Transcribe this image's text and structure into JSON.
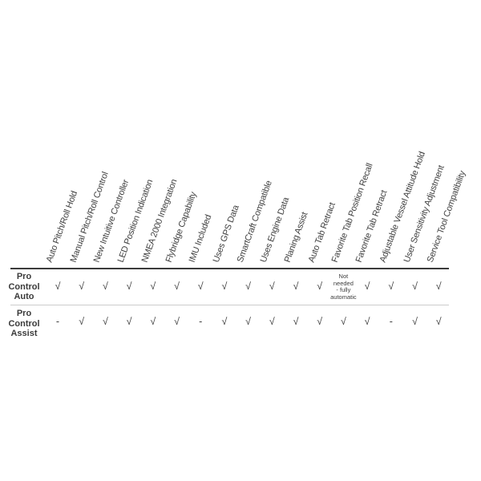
{
  "chart_data": {
    "type": "table",
    "columns": [
      "Auto Pitch/Roll Hold",
      "Manual Pitch/Roll Control",
      "New Intuitive Controller",
      "LED Position Indication",
      "NMEA 2000 Integration",
      "Flybridge Capability",
      "IMU Included",
      "Uses GPS Data",
      "SmartCraft Compatible",
      "Uses Engine Data",
      "Planing Assist",
      "Auto Tab Retract",
      "Favorite Tab Position Recall",
      "Favorite Tab Retract",
      "Adjustable Vessel Attitude Hold",
      "User Sensitivity Adjustment",
      "Service Tool Compatibility"
    ],
    "rows": [
      {
        "label": "Pro Control Auto",
        "values": [
          "√",
          "√",
          "√",
          "√",
          "√",
          "√",
          "√",
          "√",
          "√",
          "√",
          "√",
          "√",
          "Not needed - fully automatic",
          "√",
          "√",
          "√",
          "√"
        ]
      },
      {
        "label": "Pro Control Assist",
        "values": [
          "-",
          "√",
          "√",
          "√",
          "√",
          "√",
          "-",
          "√",
          "√",
          "√",
          "√",
          "√",
          "√",
          "√",
          "-",
          "√",
          "√"
        ]
      }
    ]
  },
  "render": {
    "check_symbol": "√",
    "dash_symbol": "-",
    "note_lines": [
      "Not",
      "needed",
      "- fully",
      "automatic"
    ],
    "colors": {
      "text": "#3f3f3f",
      "heavy_rule": "#3b3b3b",
      "light_rule": "#cccccc",
      "background": "#ffffff"
    }
  }
}
